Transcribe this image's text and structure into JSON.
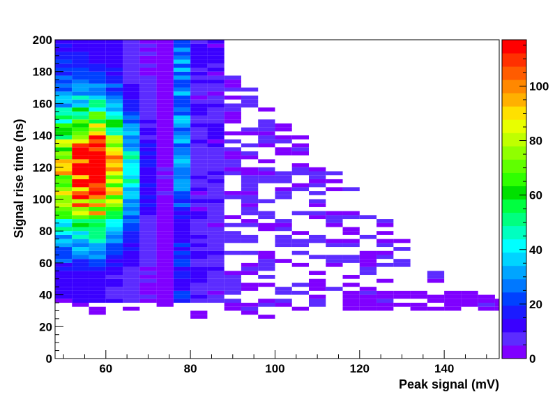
{
  "chart_data": {
    "type": "heatmap",
    "title": "",
    "xlabel": "Peak signal (mV)",
    "ylabel": "Signal rise time (ns)",
    "xlim": [
      48,
      153
    ],
    "ylim": [
      0,
      200
    ],
    "x_bin_width": 4,
    "y_bin_width": 2.5,
    "x_ticks": [
      60,
      80,
      100,
      120,
      140
    ],
    "x_tick_labels": [
      "60",
      "80",
      "100",
      "120",
      "140"
    ],
    "y_ticks": [
      0,
      20,
      40,
      60,
      80,
      100,
      120,
      140,
      160,
      180,
      200
    ],
    "y_tick_labels": [
      "0",
      "20",
      "40",
      "60",
      "80",
      "100",
      "120",
      "140",
      "160",
      "180",
      "200"
    ],
    "z_range": [
      0,
      117
    ],
    "colorbar_ticks": [
      0,
      20,
      40,
      60,
      80,
      100
    ],
    "colorbar_tick_labels": [
      "0",
      "20",
      "40",
      "60",
      "80",
      "100"
    ],
    "colors": [
      "#7f00ff",
      "#5c2cff",
      "#3a00ff",
      "#1b1bff",
      "#0041ff",
      "#0078ff",
      "#00a5ff",
      "#00d4ff",
      "#00ffff",
      "#00ffc0",
      "#00ff80",
      "#00ff40",
      "#00e000",
      "#30ff00",
      "#60ff00",
      "#90ff00",
      "#c0ff00",
      "#e8ff00",
      "#ffe000",
      "#ffb000",
      "#ff8800",
      "#ff5c00",
      "#ff3000",
      "#ff0000"
    ],
    "description_of_cells": "2D histogram of counts vs peak signal and rise time; bins given by x index from 48 mV (width 4) and y index from 0 ns (width 2.5)"
  }
}
